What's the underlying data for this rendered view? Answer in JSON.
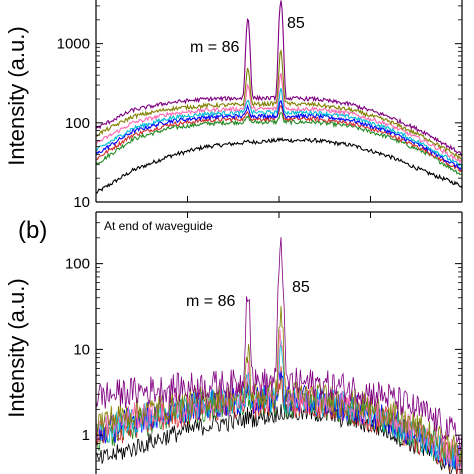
{
  "panels": [
    {
      "label": "",
      "annotation": "",
      "ylabel": "Intensity (a.u.)",
      "peak_labels": [
        "m = 86",
        "85"
      ]
    },
    {
      "label": "(b)",
      "annotation": "At end of waveguide",
      "ylabel": "Intensity (a.u.)",
      "peak_labels": [
        "m = 86",
        "85"
      ]
    }
  ],
  "chart_data": [
    {
      "type": "line",
      "yscale": "log",
      "ylabel": "Intensity (a.u.)",
      "ylim": [
        10,
        4000
      ],
      "yticks": [
        10,
        100,
        1000
      ],
      "ytick_labels": [
        "10",
        "100",
        "1000"
      ],
      "x": [
        0.0,
        0.1,
        0.2,
        0.3,
        0.4,
        0.45,
        0.5,
        0.55,
        0.6,
        0.7,
        0.8,
        0.9,
        1.0
      ],
      "peaks": [
        {
          "label": "m = 86",
          "x": 0.415
        },
        {
          "label": "85",
          "x": 0.505
        }
      ],
      "series": [
        {
          "color": "#800080",
          "values": [
            85,
            145,
            180,
            200,
            205,
            2100,
            205,
            3500,
            200,
            170,
            120,
            75,
            40
          ]
        },
        {
          "color": "#808000",
          "values": [
            70,
            120,
            150,
            165,
            170,
            500,
            175,
            800,
            170,
            145,
            105,
            65,
            35
          ]
        },
        {
          "color": "#ff69b4",
          "values": [
            55,
            100,
            130,
            145,
            150,
            300,
            150,
            420,
            150,
            130,
            95,
            58,
            32
          ]
        },
        {
          "color": "#00bcd4",
          "values": [
            45,
            85,
            115,
            130,
            135,
            200,
            135,
            260,
            135,
            118,
            85,
            52,
            28
          ]
        },
        {
          "color": "#0000ff",
          "values": [
            40,
            78,
            105,
            118,
            122,
            160,
            122,
            190,
            122,
            108,
            78,
            48,
            26
          ]
        },
        {
          "color": "#d32f2f",
          "values": [
            35,
            70,
            95,
            108,
            112,
            140,
            112,
            160,
            112,
            98,
            72,
            45,
            24
          ]
        },
        {
          "color": "#228b22",
          "values": [
            30,
            62,
            85,
            98,
            102,
            120,
            102,
            135,
            102,
            90,
            66,
            42,
            22
          ]
        },
        {
          "color": "#000000",
          "values": [
            13,
            25,
            38,
            50,
            56,
            58,
            60,
            62,
            60,
            52,
            38,
            24,
            16
          ]
        }
      ]
    },
    {
      "type": "line",
      "yscale": "log",
      "ylabel": "Intensity (a.u.)",
      "ylim": [
        0.3,
        400
      ],
      "yticks": [
        1,
        10,
        100
      ],
      "ytick_labels": [
        "1",
        "10",
        "100"
      ],
      "x": [
        0.0,
        0.1,
        0.2,
        0.3,
        0.4,
        0.45,
        0.5,
        0.55,
        0.6,
        0.7,
        0.8,
        0.9,
        1.0
      ],
      "peaks": [
        {
          "label": "m = 86",
          "x": 0.415
        },
        {
          "label": "85",
          "x": 0.505
        }
      ],
      "series": [
        {
          "color": "#800080",
          "values": [
            2.8,
            3.2,
            3.5,
            3.8,
            4.0,
            55,
            4.2,
            190,
            4.0,
            3.5,
            2.8,
            1.8,
            0.9
          ]
        },
        {
          "color": "#808000",
          "values": [
            1.4,
            1.8,
            2.2,
            2.6,
            2.8,
            10,
            3.0,
            30,
            2.8,
            2.4,
            1.8,
            1.1,
            0.6
          ]
        },
        {
          "color": "#ff69b4",
          "values": [
            1.2,
            1.6,
            2.0,
            2.4,
            2.6,
            6,
            2.7,
            14,
            2.6,
            2.2,
            1.6,
            1.0,
            0.5
          ]
        },
        {
          "color": "#00bcd4",
          "values": [
            1.1,
            1.5,
            1.9,
            2.3,
            2.5,
            4.5,
            2.6,
            9,
            2.5,
            2.1,
            1.5,
            0.9,
            0.5
          ]
        },
        {
          "color": "#0000ff",
          "values": [
            1.0,
            1.5,
            1.9,
            2.3,
            2.5,
            4.0,
            2.6,
            7,
            2.5,
            2.1,
            1.5,
            0.9,
            0.5
          ]
        },
        {
          "color": "#d32f2f",
          "values": [
            0.9,
            1.3,
            1.7,
            2.1,
            2.3,
            3.2,
            2.4,
            5,
            2.3,
            1.9,
            1.4,
            0.8,
            0.45
          ]
        },
        {
          "color": "#228b22",
          "values": [
            0.9,
            1.3,
            1.7,
            2.1,
            2.3,
            3.0,
            2.4,
            4.5,
            2.3,
            1.9,
            1.4,
            0.8,
            0.45
          ]
        },
        {
          "color": "#000000",
          "values": [
            0.5,
            0.7,
            1.0,
            1.3,
            1.5,
            1.7,
            1.8,
            2.0,
            1.8,
            1.5,
            1.1,
            0.65,
            0.35
          ]
        }
      ]
    }
  ]
}
